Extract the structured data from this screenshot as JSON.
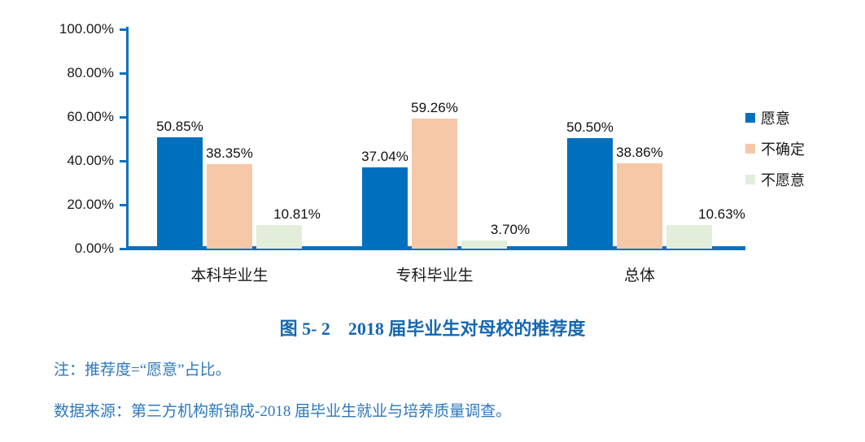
{
  "caption": "图 5- 2　2018 届毕业生对母校的推荐度",
  "note": "注：推荐度=“愿意”占比。",
  "source": "数据来源：第三方机构新锦成-2018 届毕业生就业与培养质量调查。",
  "colors": {
    "axis": "#0B70C2",
    "caption_text": "#1567B0",
    "note_text": "#2E78BC",
    "series_willing": "#0070BE",
    "series_uncertain": "#F6C8A8",
    "series_unwilling": "#E2EEDA"
  },
  "chart_data": {
    "type": "bar",
    "title": "",
    "xlabel": "",
    "ylabel": "",
    "ylim": [
      0,
      100
    ],
    "grid": false,
    "legend_position": "right",
    "categories": [
      "本科毕业生",
      "专科毕业生",
      "总体"
    ],
    "y_tick_values": [
      0,
      20,
      40,
      60,
      80,
      100
    ],
    "y_tick_labels": [
      "0.00%",
      "20.00%",
      "40.00%",
      "60.00%",
      "80.00%",
      "100.00%"
    ],
    "series": [
      {
        "name": "愿意",
        "color": "#0070BE",
        "values": [
          50.85,
          37.04,
          50.5
        ],
        "value_labels": [
          "50.85%",
          "37.04%",
          "50.50%"
        ]
      },
      {
        "name": "不确定",
        "color": "#F6C8A8",
        "values": [
          38.35,
          59.26,
          38.86
        ],
        "value_labels": [
          "38.35%",
          "59.26%",
          "38.86%"
        ]
      },
      {
        "name": "不愿意",
        "color": "#E2EEDA",
        "values": [
          10.81,
          3.7,
          10.63
        ],
        "value_labels": [
          "10.81%",
          "3.70%",
          "10.63%"
        ]
      }
    ]
  }
}
